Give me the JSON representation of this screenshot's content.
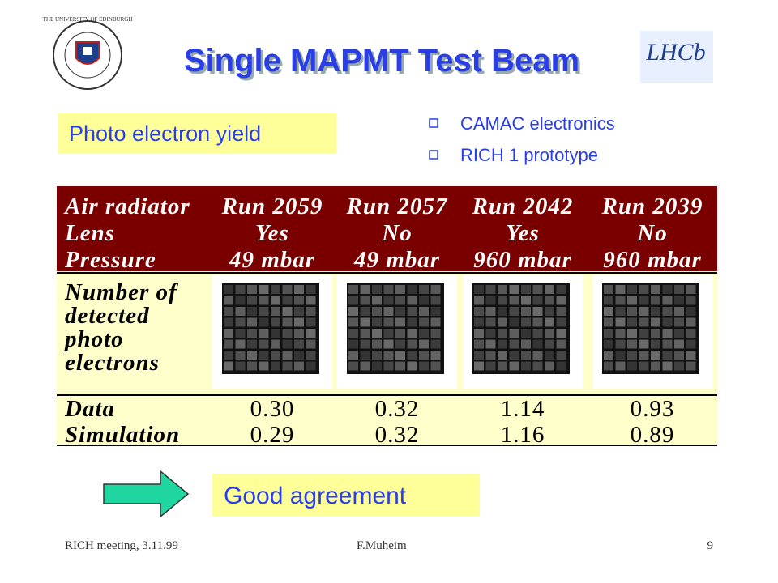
{
  "header": {
    "title": "Single MAPMT Test Beam",
    "university_logo": "THE UNIVERSITY OF EDINBURGH",
    "experiment_logo": "LHCb"
  },
  "callout": "Photo electron yield",
  "bullets": [
    "CAMAC electronics",
    "RICH 1 prototype"
  ],
  "table": {
    "header_labels": [
      "Air radiator",
      "Lens",
      "Pressure"
    ],
    "runs": [
      {
        "run": "Run 2059",
        "lens": "Yes",
        "pressure": "49 mbar"
      },
      {
        "run": "Run 2057",
        "lens": "No",
        "pressure": "49 mbar"
      },
      {
        "run": "Run 2042",
        "lens": "Yes",
        "pressure": "960 mbar"
      },
      {
        "run": "Run 2039",
        "lens": "No",
        "pressure": "960 mbar"
      }
    ],
    "image_row_label": [
      "Number of",
      "detected",
      "photo",
      "electrons"
    ],
    "rows": [
      [
        "Data",
        "0.30",
        "0.32",
        "1.14",
        "0.93"
      ],
      [
        "Simulation",
        "0.29",
        "0.32",
        "1.16",
        "0.89"
      ]
    ]
  },
  "conclusion": "Good agreement",
  "footer": {
    "left": "RICH meeting, 3.11.99",
    "center": "F.Muheim",
    "page": "9"
  }
}
